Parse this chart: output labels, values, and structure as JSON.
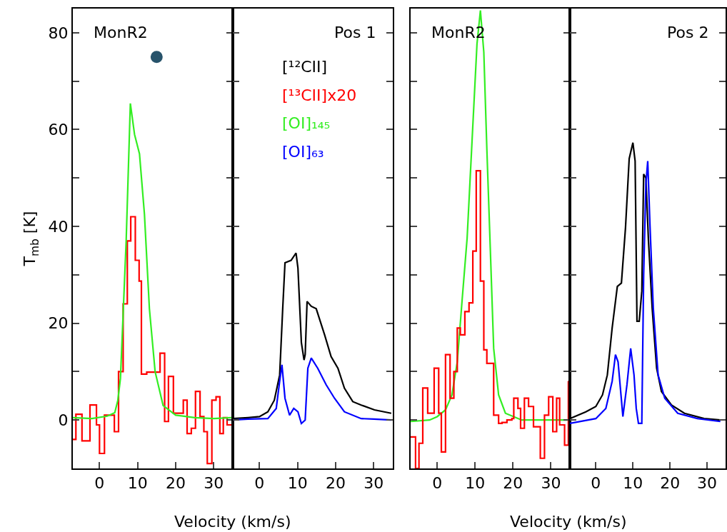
{
  "chart_data": [
    {
      "type": "line",
      "ylabel": "T$_{mb}$ [K]",
      "xlabel": "Velocity (km/s)",
      "annotations": [
        "MonR2"
      ],
      "xlim": [
        -7,
        35
      ],
      "xticks": [
        0,
        10,
        20,
        30
      ],
      "ylim": [
        -10,
        85
      ],
      "yticks": [
        0,
        {
          "value": 10,
          "label": null
        },
        20,
        {
          "value": 30,
          "label": null
        },
        40,
        {
          "value": 50,
          "label": null
        },
        60,
        {
          "value": 70,
          "label": null
        },
        80
      ],
      "marker": "none",
      "series": [
        {
          "name": "[¹³CII]x20",
          "color": "#ff0000",
          "type": "step",
          "x": [
            -7,
            -6.2,
            -4.6,
            -2.5,
            -0.8,
            0,
            1.3,
            3.9,
            5,
            6.2,
            7.3,
            8.2,
            9.4,
            10.4,
            11,
            12.4,
            15.9,
            17.1,
            18.1,
            19.4,
            22,
            23,
            24.1,
            25.2,
            26.4,
            27.4,
            28.3,
            29.5,
            30.6,
            31.6,
            32.5,
            33.5,
            35
          ],
          "values": [
            -4,
            1.2,
            -4.3,
            3.1,
            -1,
            -6.9,
            1,
            -2.4,
            10,
            24,
            37,
            42,
            33,
            28.7,
            9.5,
            9.9,
            13.8,
            -0.3,
            9,
            1.4,
            4.1,
            -2.8,
            -1.7,
            5.9,
            0.7,
            -2.4,
            -9,
            4.1,
            4.8,
            -2.8,
            0.5,
            -1,
            -1
          ]
        },
        {
          "name": "[OI]₁₄₅",
          "color": "#33ee22",
          "x": [
            -7,
            -2,
            2,
            4,
            4.8,
            5.5,
            7,
            8.1,
            9.2,
            10.5,
            11.8,
            13.1,
            14.6,
            16.7,
            20,
            25,
            30,
            34.6
          ],
          "values": [
            0.5,
            0.3,
            0.8,
            1.5,
            4,
            8.6,
            37,
            65.4,
            59,
            55,
            42.5,
            23,
            10,
            3,
            1,
            0.5,
            0.3,
            0.5
          ]
        },
        {
          "type": "scatter",
          "color": "#27536b",
          "marker": "circle",
          "x": [
            15
          ],
          "values": [
            75
          ]
        }
      ]
    },
    {
      "type": "line",
      "annotations": [
        "Pos 1"
      ],
      "legend": "top right",
      "tick_labels": "x",
      "xlim": [
        -7,
        35
      ],
      "xticks": [
        0,
        10,
        20,
        30
      ],
      "ylim": [
        -10,
        85
      ],
      "yticks": [
        0,
        {
          "value": 10,
          "label": null
        },
        20,
        {
          "value": 30,
          "label": null
        },
        40,
        {
          "value": 50,
          "label": null
        },
        60,
        {
          "value": 70,
          "label": null
        },
        80
      ],
      "marker": "none",
      "series": [
        {
          "name": "[¹²CII]",
          "color": "#000000",
          "x": [
            -7,
            -3,
            0,
            2.2,
            3.9,
            5.3,
            6.1,
            6.7,
            8.3,
            9.6,
            10.1,
            11,
            11.7,
            12,
            12.5,
            13.6,
            14.9,
            17.1,
            18.8,
            20.6,
            22.3,
            24.5,
            26.7,
            30.2,
            34.6
          ],
          "values": [
            0.3,
            0.5,
            0.7,
            1.7,
            4.1,
            9.3,
            23,
            32.5,
            33,
            34.5,
            31.4,
            16,
            12.4,
            13.5,
            24.5,
            23.5,
            23,
            17.6,
            13.1,
            10.7,
            6.6,
            3.8,
            3.1,
            2.1,
            1.4
          ]
        },
        {
          "name": "[OI]₆₃",
          "color": "#0000ff",
          "x": [
            -7,
            -3,
            2.2,
            4.4,
            5.3,
            5.9,
            6.7,
            7.9,
            9,
            10.1,
            11,
            12,
            12.7,
            13.6,
            15.3,
            17.5,
            19.7,
            22.3,
            26.7,
            30,
            34.6
          ],
          "values": [
            0,
            0.2,
            0.3,
            2.4,
            8,
            11.4,
            4.5,
            1,
            2.4,
            1.7,
            -0.7,
            0,
            10.7,
            12.8,
            10.7,
            7.3,
            4.5,
            1.7,
            0.3,
            0.2,
            0
          ]
        }
      ]
    },
    {
      "type": "line",
      "xlabel": "Velocity (km/s)",
      "annotations": [
        "MonR2"
      ],
      "tick_labels": "x",
      "xlim": [
        -7,
        35
      ],
      "xticks": [
        0,
        10,
        20,
        30
      ],
      "ylim": [
        -10,
        85
      ],
      "yticks": [
        0,
        {
          "value": 10,
          "label": null
        },
        20,
        {
          "value": 30,
          "label": null
        },
        40,
        {
          "value": 50,
          "label": null
        },
        60,
        {
          "value": 70,
          "label": null
        },
        80
      ],
      "marker": "none",
      "series": [
        {
          "color": "#33ee22",
          "x": [
            -7,
            -2,
            0,
            2.2,
            3.9,
            5.3,
            6.6,
            7.9,
            9.2,
            10.5,
            11.4,
            12.3,
            13.1,
            14,
            14.9,
            16.2,
            18,
            22.3,
            28,
            34.6
          ],
          "values": [
            -0.3,
            0,
            0.7,
            2.1,
            5.2,
            12,
            25,
            37.6,
            57.7,
            77.7,
            84.6,
            76,
            56,
            35.6,
            14.8,
            5.2,
            1.4,
            0,
            0,
            0
          ]
        },
        {
          "color": "#ff0000",
          "type": "step",
          "x": [
            -7,
            -5.7,
            -4.8,
            -3.8,
            -2.5,
            -0.8,
            0.4,
            1.1,
            2.2,
            3.4,
            4.4,
            5.3,
            6.1,
            7.3,
            8.4,
            9.4,
            10.3,
            11.4,
            12.3,
            13.1,
            14.9,
            16.2,
            17.1,
            18.4,
            19.7,
            20.2,
            21.3,
            22,
            23,
            24.1,
            25.4,
            27.2,
            28.3,
            29.4,
            30.5,
            31.5,
            32.3,
            33.6,
            34.6,
            35
          ],
          "values": [
            -3.5,
            -10,
            -4.8,
            6.6,
            1.4,
            10.7,
            1.4,
            -6.6,
            13.5,
            4.5,
            10,
            19,
            17.6,
            22.4,
            24.2,
            34.9,
            51.5,
            28.7,
            14.5,
            11.7,
            1,
            -0.7,
            -0.5,
            0,
            0.3,
            4.5,
            2.4,
            -1.7,
            4.5,
            2.8,
            -1.4,
            -7.9,
            1,
            4.8,
            -2.4,
            4.5,
            -1,
            -5.2,
            7.9,
            7.9
          ]
        }
      ]
    },
    {
      "type": "line",
      "annotations": [
        "Pos 2"
      ],
      "tick_labels": "x",
      "xlim": [
        -7,
        35
      ],
      "xticks": [
        0,
        10,
        20,
        30
      ],
      "ylim": [
        -10,
        85
      ],
      "yticks": [
        0,
        {
          "value": 10,
          "label": null
        },
        20,
        {
          "value": 30,
          "label": null
        },
        40,
        {
          "value": 50,
          "label": null
        },
        60,
        {
          "value": 70,
          "label": null
        },
        80
      ],
      "marker": "none",
      "series": [
        {
          "color": "#000000",
          "x": [
            -7,
            -2.7,
            0,
            1.8,
            3.1,
            4.4,
            5.8,
            6.9,
            8,
            9,
            10,
            10.6,
            11.1,
            11.7,
            12.4,
            12.9,
            13.5,
            14.2,
            15.2,
            16.4,
            17.7,
            20.4,
            23.9,
            29.2,
            33.6
          ],
          "values": [
            0.3,
            1.7,
            2.8,
            5.2,
            9.3,
            19,
            27.6,
            28.3,
            39.7,
            54,
            57.3,
            53.5,
            20.4,
            20.4,
            26.6,
            50.8,
            50,
            37,
            23.1,
            10.7,
            5.9,
            3.1,
            1.4,
            0.3,
            0
          ]
        },
        {
          "color": "#0000ff",
          "x": [
            -7,
            0,
            2.7,
            4.4,
            5.3,
            6,
            7.3,
            8.4,
            9.4,
            10.3,
            10.9,
            11.5,
            12.4,
            12.9,
            13.5,
            14,
            14.6,
            15.5,
            16.8,
            18.6,
            22.1,
            27.4,
            33.6
          ],
          "values": [
            -0.7,
            0.3,
            2.4,
            8,
            13.5,
            12,
            0.7,
            7.3,
            14.8,
            9.3,
            2.4,
            -0.7,
            -0.7,
            30,
            48.7,
            53.5,
            40.4,
            23.1,
            9.3,
            4.5,
            1.4,
            0.3,
            -0.3
          ]
        }
      ]
    }
  ]
}
